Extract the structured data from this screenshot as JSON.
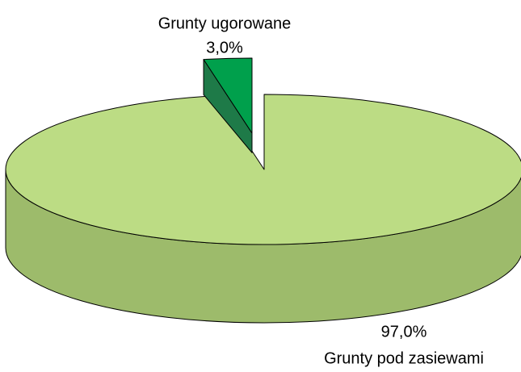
{
  "chart_data": {
    "type": "pie",
    "categories": [
      "Grunty pod zasiewami",
      "Grunty ugorowane"
    ],
    "values": [
      97.0,
      3.0
    ],
    "value_labels": [
      "97,0%",
      "3,0%"
    ],
    "colors": [
      "#bcdc84",
      "#00a04c"
    ],
    "side_colors": [
      "#9dbb6b",
      "#1e7a48"
    ]
  }
}
